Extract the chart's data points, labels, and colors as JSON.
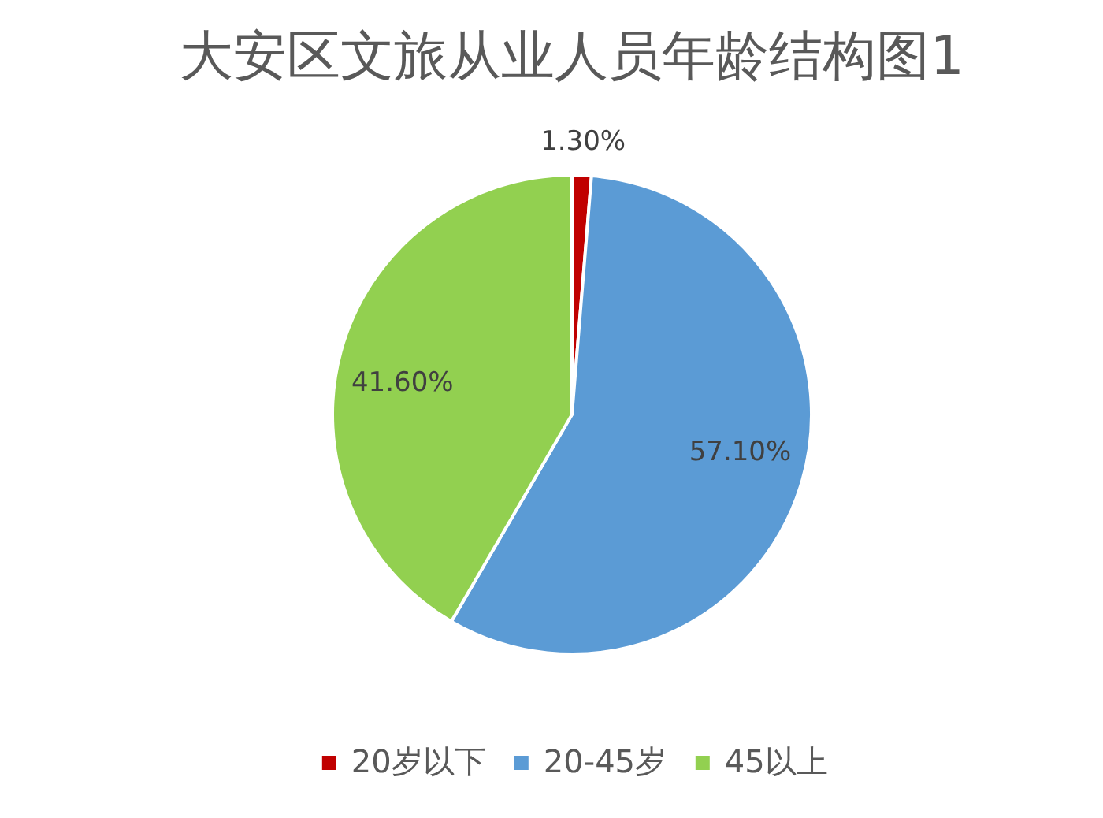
{
  "chart_data": {
    "type": "pie",
    "title": "大安区文旅从业人员年龄结构图1",
    "categories": [
      "20岁以下",
      "20-45岁",
      "45以上"
    ],
    "values": [
      1.3,
      57.1,
      41.6
    ],
    "colors": [
      "#c00000",
      "#5b9bd5",
      "#92d050"
    ],
    "value_labels": [
      "1.30%",
      "57.10%",
      "41.60%"
    ],
    "legend": "bottom"
  }
}
